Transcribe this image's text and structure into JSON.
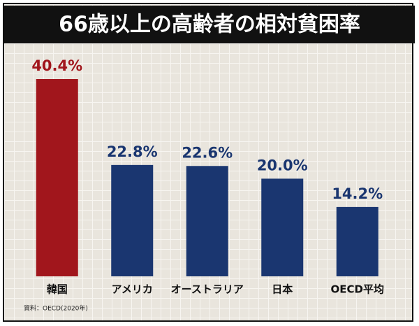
{
  "chart_data": {
    "type": "bar",
    "title": "66歳以上の高齢者の相対貧困率",
    "categories": [
      "韓国",
      "アメリカ",
      "オーストラリア",
      "日本",
      "OECD平均"
    ],
    "values": [
      40.4,
      22.8,
      22.6,
      20.0,
      14.2
    ],
    "value_labels": [
      "40.4%",
      "22.8%",
      "22.6%",
      "20.0%",
      "14.2%"
    ],
    "colors": [
      "#a1161c",
      "#1a3670",
      "#1a3670",
      "#1a3670",
      "#1a3670"
    ],
    "source": "資料：OECD(2020年)"
  }
}
